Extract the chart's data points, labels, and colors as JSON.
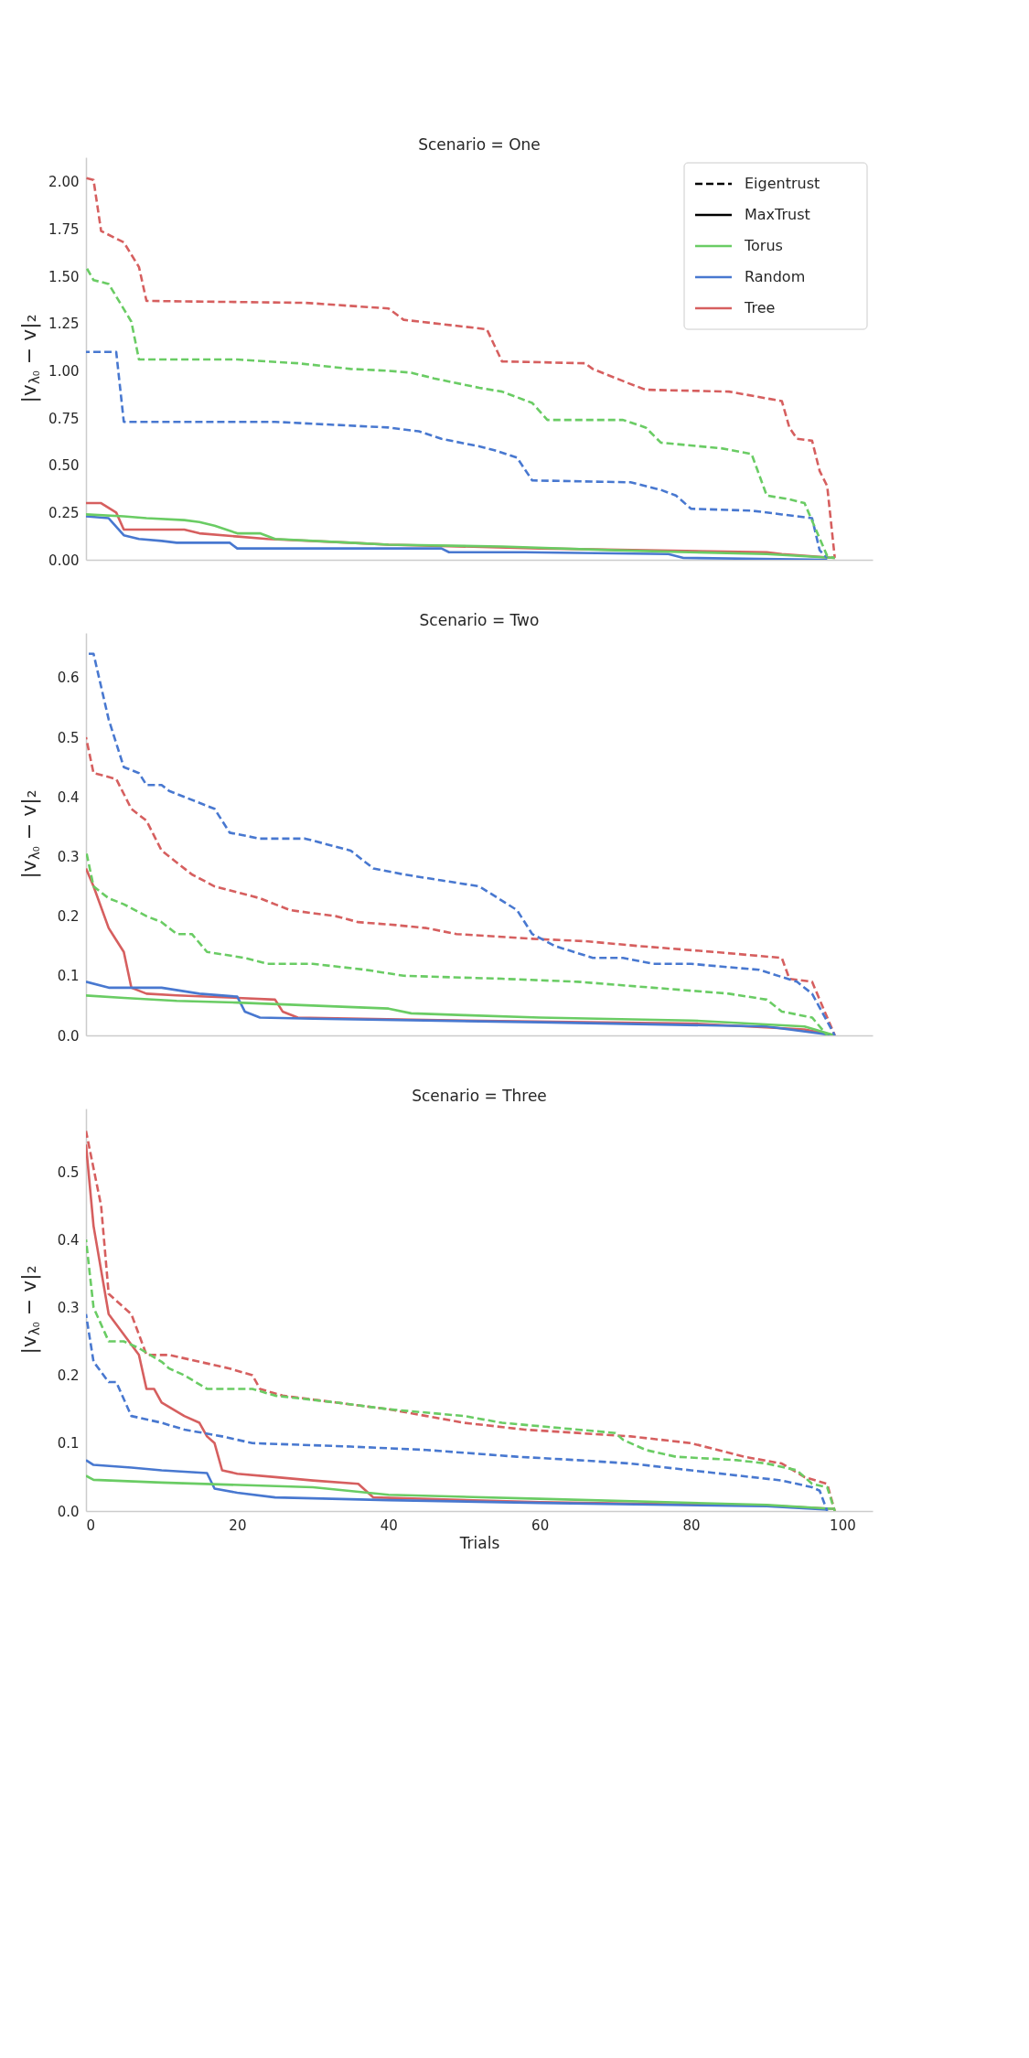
{
  "chart_data": [
    {
      "type": "line",
      "title": "Scenario = One",
      "ylabel": "|v$_{λ₀}$ − v|₂",
      "xlim": [
        0,
        104
      ],
      "xticks": [
        0,
        20,
        40,
        60,
        80,
        100
      ],
      "ylim": [
        0,
        2.13
      ],
      "yticks": [
        {
          "value": 0,
          "label": "0.00"
        },
        {
          "value": 0.25,
          "label": "0.25"
        },
        {
          "value": 0.5,
          "label": "0.50"
        },
        {
          "value": 0.75,
          "label": "0.75"
        },
        {
          "value": 1,
          "label": "1.00"
        },
        {
          "value": 1.25,
          "label": "1.25"
        },
        {
          "value": 1.5,
          "label": "1.50"
        },
        {
          "value": 1.75,
          "label": "1.75"
        },
        {
          "value": 2,
          "label": "2.00"
        }
      ],
      "tick_labels": "y",
      "grid": false,
      "legend": "top right",
      "annotations": [
        "Eigentrust",
        "MaxTrust"
      ],
      "series": [
        {
          "name": "Torus",
          "color": "#6acc64",
          "line_style": "dashed",
          "x": [
            0,
            1,
            3,
            6,
            7,
            20,
            28,
            35,
            40,
            43,
            46,
            52,
            55,
            59,
            61,
            71,
            74,
            76,
            84,
            88,
            90,
            93,
            95,
            98,
            99
          ],
          "values": [
            1.55,
            1.48,
            1.46,
            1.26,
            1.06,
            1.06,
            1.04,
            1.01,
            1.0,
            0.99,
            0.96,
            0.91,
            0.89,
            0.83,
            0.74,
            0.74,
            0.7,
            0.62,
            0.59,
            0.56,
            0.34,
            0.32,
            0.3,
            0.02,
            0.01
          ]
        },
        {
          "name": "Random",
          "color": "#4878d0",
          "line_style": "dashed",
          "x": [
            0,
            4,
            5,
            25,
            40,
            44,
            47,
            52,
            54,
            57,
            59,
            72,
            76,
            78,
            80,
            88,
            92,
            96,
            97,
            98
          ],
          "values": [
            1.1,
            1.1,
            0.73,
            0.73,
            0.7,
            0.68,
            0.64,
            0.6,
            0.58,
            0.54,
            0.42,
            0.41,
            0.37,
            0.34,
            0.27,
            0.26,
            0.24,
            0.22,
            0.05,
            0.01
          ]
        },
        {
          "name": "Tree",
          "color": "#d65f5f",
          "line_style": "dashed",
          "x": [
            0,
            1,
            2,
            5,
            7,
            8,
            29,
            40,
            42,
            53,
            55,
            66,
            67,
            72,
            74,
            85,
            92,
            93,
            94,
            96,
            97,
            98,
            99
          ],
          "values": [
            2.02,
            2.01,
            1.74,
            1.68,
            1.55,
            1.37,
            1.36,
            1.33,
            1.27,
            1.22,
            1.05,
            1.04,
            1.01,
            0.93,
            0.9,
            0.89,
            0.84,
            0.7,
            0.64,
            0.63,
            0.47,
            0.39,
            0.01
          ]
        },
        {
          "color": "#6acc64",
          "line_style": "solid",
          "x": [
            0,
            5,
            8,
            13,
            15,
            17,
            20,
            23,
            25,
            35,
            40,
            55,
            70,
            90,
            99
          ],
          "values": [
            0.24,
            0.23,
            0.22,
            0.21,
            0.2,
            0.18,
            0.14,
            0.14,
            0.11,
            0.09,
            0.08,
            0.07,
            0.05,
            0.03,
            0.01
          ]
        },
        {
          "color": "#4878d0",
          "line_style": "solid",
          "x": [
            0,
            3,
            5,
            7,
            10,
            12,
            19,
            20,
            47,
            48,
            58,
            77,
            79,
            98
          ],
          "values": [
            0.23,
            0.22,
            0.13,
            0.11,
            0.1,
            0.09,
            0.09,
            0.06,
            0.06,
            0.04,
            0.04,
            0.03,
            0.01,
            0.0
          ]
        },
        {
          "color": "#d65f5f",
          "line_style": "solid",
          "x": [
            0,
            2,
            4,
            5,
            13,
            15,
            24,
            35,
            40,
            60,
            90,
            92,
            99
          ],
          "values": [
            0.3,
            0.3,
            0.25,
            0.16,
            0.16,
            0.14,
            0.11,
            0.09,
            0.08,
            0.06,
            0.04,
            0.03,
            0.01
          ]
        }
      ]
    },
    {
      "type": "line",
      "title": "Scenario = Two",
      "ylabel": "|v$_{λ₀}$ − v|₂",
      "xlim": [
        0,
        104
      ],
      "xticks": [
        0,
        20,
        40,
        60,
        80,
        100
      ],
      "ylim": [
        0,
        0.675
      ],
      "yticks": [
        {
          "value": 0,
          "label": "0.0"
        },
        0.1,
        0.2,
        0.3,
        0.4,
        0.5,
        0.6
      ],
      "tick_labels": "y",
      "grid": false,
      "series": [
        {
          "color": "#6acc64",
          "line_style": "dashed",
          "x": [
            0,
            1,
            3,
            5,
            8,
            10,
            12,
            14,
            16,
            21,
            24,
            30,
            37,
            42,
            55,
            65,
            75,
            85,
            90,
            92,
            96,
            98
          ],
          "values": [
            0.31,
            0.25,
            0.23,
            0.22,
            0.2,
            0.19,
            0.17,
            0.17,
            0.14,
            0.13,
            0.12,
            0.12,
            0.11,
            0.1,
            0.095,
            0.09,
            0.08,
            0.07,
            0.06,
            0.04,
            0.03,
            0.0
          ]
        },
        {
          "color": "#4878d0",
          "line_style": "dashed",
          "x": [
            0,
            1,
            3,
            5,
            7,
            8,
            10,
            11,
            13,
            15,
            17,
            19,
            23,
            29,
            35,
            38,
            42,
            47,
            52,
            57,
            59,
            62,
            67,
            71,
            75,
            80,
            89,
            94,
            96,
            99
          ],
          "values": [
            0.64,
            0.64,
            0.53,
            0.45,
            0.44,
            0.42,
            0.42,
            0.41,
            0.4,
            0.39,
            0.38,
            0.34,
            0.33,
            0.33,
            0.31,
            0.28,
            0.27,
            0.26,
            0.25,
            0.21,
            0.17,
            0.15,
            0.13,
            0.13,
            0.12,
            0.12,
            0.11,
            0.09,
            0.07,
            0.0
          ]
        },
        {
          "color": "#d65f5f",
          "line_style": "dashed",
          "x": [
            0,
            1,
            4,
            6,
            8,
            10,
            12,
            14,
            17,
            20,
            23,
            27,
            33,
            36,
            41,
            45,
            49,
            54,
            59,
            66,
            73,
            83,
            92,
            93,
            96,
            99
          ],
          "values": [
            0.5,
            0.44,
            0.43,
            0.38,
            0.36,
            0.31,
            0.29,
            0.27,
            0.25,
            0.24,
            0.23,
            0.21,
            0.2,
            0.19,
            0.185,
            0.18,
            0.17,
            0.166,
            0.162,
            0.158,
            0.15,
            0.14,
            0.13,
            0.095,
            0.09,
            0.0
          ]
        },
        {
          "color": "#6acc64",
          "line_style": "solid",
          "x": [
            0,
            5,
            12,
            20,
            30,
            40,
            43,
            50,
            60,
            80,
            95,
            99
          ],
          "values": [
            0.067,
            0.063,
            0.058,
            0.055,
            0.05,
            0.045,
            0.037,
            0.034,
            0.03,
            0.025,
            0.015,
            0.0
          ]
        },
        {
          "color": "#4878d0",
          "line_style": "solid",
          "x": [
            0,
            3,
            10,
            15,
            20,
            21,
            23,
            30,
            60,
            90,
            99
          ],
          "values": [
            0.09,
            0.08,
            0.08,
            0.07,
            0.065,
            0.04,
            0.03,
            0.028,
            0.022,
            0.015,
            0.0
          ]
        },
        {
          "color": "#d65f5f",
          "line_style": "solid",
          "x": [
            0,
            1,
            3,
            4,
            5,
            6,
            8,
            12,
            20,
            25,
            26,
            28,
            50,
            80,
            95,
            99
          ],
          "values": [
            0.28,
            0.25,
            0.18,
            0.16,
            0.14,
            0.08,
            0.07,
            0.067,
            0.063,
            0.06,
            0.04,
            0.03,
            0.025,
            0.02,
            0.01,
            0.0
          ]
        }
      ]
    },
    {
      "type": "line",
      "title": "Scenario = Three",
      "xlabel": "Trials",
      "ylabel": "|v$_{λ₀}$ − v|₂",
      "xlim": [
        0,
        104
      ],
      "xticks": [
        0,
        20,
        40,
        60,
        80,
        100
      ],
      "ylim": [
        0,
        0.593
      ],
      "yticks": [
        {
          "value": 0,
          "label": "0.0"
        },
        0.1,
        0.2,
        0.3,
        0.4,
        0.5
      ],
      "grid": false,
      "series": [
        {
          "color": "#6acc64",
          "line_style": "dashed",
          "x": [
            0,
            1,
            3,
            5,
            7,
            10,
            11,
            13,
            16,
            22,
            25,
            33,
            40,
            50,
            55,
            65,
            70,
            71,
            74,
            78,
            86,
            90,
            94,
            96,
            98,
            99
          ],
          "values": [
            0.4,
            0.3,
            0.25,
            0.25,
            0.24,
            0.22,
            0.21,
            0.2,
            0.18,
            0.18,
            0.17,
            0.16,
            0.15,
            0.14,
            0.13,
            0.12,
            0.115,
            0.105,
            0.09,
            0.08,
            0.075,
            0.07,
            0.06,
            0.04,
            0.035,
            0.0
          ]
        },
        {
          "color": "#4878d0",
          "line_style": "dashed",
          "x": [
            0,
            1,
            3,
            4,
            6,
            10,
            13,
            18,
            22,
            35,
            45,
            57,
            65,
            72,
            80,
            88,
            92,
            96,
            97,
            98
          ],
          "values": [
            0.29,
            0.22,
            0.19,
            0.19,
            0.14,
            0.13,
            0.12,
            0.11,
            0.1,
            0.095,
            0.09,
            0.08,
            0.075,
            0.07,
            0.06,
            0.05,
            0.045,
            0.035,
            0.03,
            0.0
          ]
        },
        {
          "color": "#d65f5f",
          "line_style": "dashed",
          "x": [
            0,
            2,
            3,
            5,
            6,
            8,
            11,
            15,
            19,
            22,
            23,
            26,
            33,
            40,
            45,
            50,
            58,
            65,
            72,
            80,
            87,
            92,
            95,
            98,
            99
          ],
          "values": [
            0.56,
            0.45,
            0.32,
            0.3,
            0.29,
            0.23,
            0.23,
            0.22,
            0.21,
            0.2,
            0.18,
            0.17,
            0.16,
            0.15,
            0.14,
            0.13,
            0.12,
            0.115,
            0.11,
            0.1,
            0.08,
            0.07,
            0.05,
            0.04,
            0.0
          ]
        },
        {
          "color": "#6acc64",
          "line_style": "solid",
          "x": [
            0,
            1,
            10,
            30,
            40,
            60,
            90,
            99
          ],
          "values": [
            0.052,
            0.046,
            0.042,
            0.035,
            0.024,
            0.018,
            0.009,
            0.003
          ]
        },
        {
          "color": "#4878d0",
          "line_style": "solid",
          "x": [
            0,
            1,
            6,
            10,
            16,
            17,
            20,
            25,
            40,
            60,
            90,
            98
          ],
          "values": [
            0.075,
            0.068,
            0.064,
            0.06,
            0.056,
            0.033,
            0.027,
            0.02,
            0.016,
            0.012,
            0.007,
            0.002
          ]
        },
        {
          "color": "#d65f5f",
          "line_style": "solid",
          "x": [
            0,
            1,
            3,
            5,
            7,
            8,
            9,
            10,
            13,
            15,
            16,
            17,
            18,
            20,
            25,
            30,
            36,
            38,
            60,
            90,
            99
          ],
          "values": [
            0.54,
            0.42,
            0.29,
            0.26,
            0.23,
            0.18,
            0.18,
            0.16,
            0.14,
            0.13,
            0.11,
            0.1,
            0.06,
            0.055,
            0.05,
            0.045,
            0.04,
            0.02,
            0.013,
            0.008,
            0.003
          ]
        }
      ]
    }
  ]
}
